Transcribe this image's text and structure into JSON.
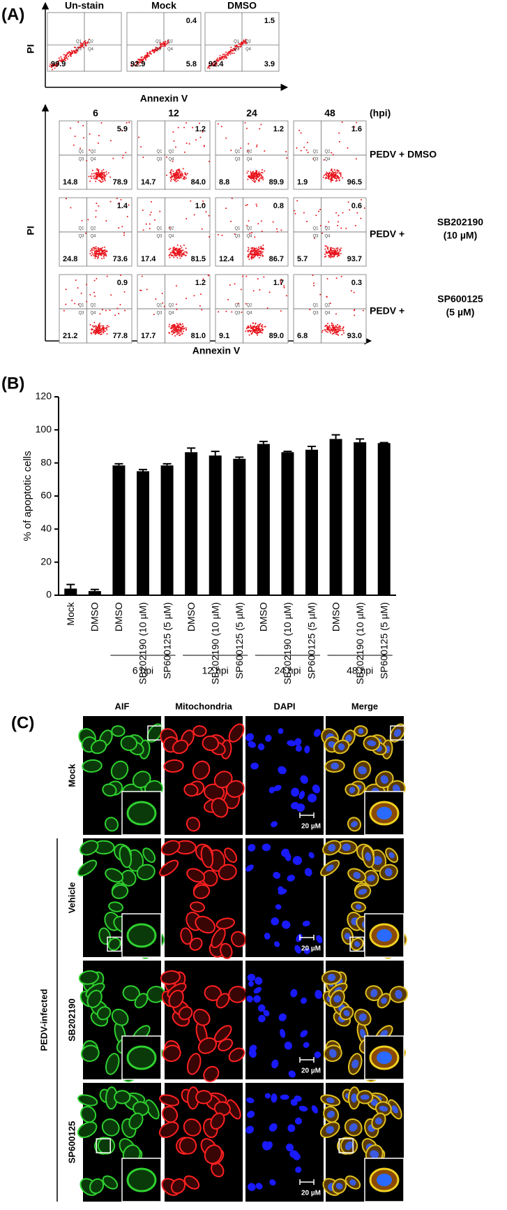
{
  "panel_a": {
    "label": "(A)",
    "y_label": "PI",
    "x_label": "Annexin V",
    "quadrant_labels": [
      "Q1",
      "Q2",
      "Q3",
      "Q4"
    ],
    "controls": [
      {
        "title": "Un-stain",
        "q3": "99.9"
      },
      {
        "title": "Mock",
        "q2": "0.4",
        "q3": "92.9",
        "q4": "5.8"
      },
      {
        "title": "DMSO",
        "q2": "1.5",
        "q3": "92.4",
        "q4": "3.9"
      }
    ],
    "time_unit": "(hpi)",
    "timepoints": [
      "6",
      "12",
      "24",
      "48"
    ],
    "treatments": [
      {
        "name": "PEDV + DMSO"
      },
      {
        "name": "PEDV +",
        "agent": "SB202190",
        "dose": "(10 µM)"
      },
      {
        "name": "PEDV +",
        "agent": "SP600125",
        "dose": "(5 µM)"
      }
    ],
    "cells": [
      [
        {
          "q2": "5.9",
          "q3": "14.8",
          "q4": "78.9"
        },
        {
          "q2": "1.2",
          "q3": "14.7",
          "q4": "84.0"
        },
        {
          "q2": "1.2",
          "q3": "8.8",
          "q4": "89.9"
        },
        {
          "q2": "1.6",
          "q3": "1.9",
          "q4": "96.5"
        }
      ],
      [
        {
          "q2": "1.4",
          "q3": "24.8",
          "q4": "73.6"
        },
        {
          "q2": "1.0",
          "q3": "17.4",
          "q4": "81.5"
        },
        {
          "q2": "0.8",
          "q3": "12.4",
          "q4": "86.7"
        },
        {
          "q2": "0.6",
          "q3": "5.7",
          "q4": "93.7"
        }
      ],
      [
        {
          "q2": "0.9",
          "q3": "21.2",
          "q4": "77.8"
        },
        {
          "q2": "1.2",
          "q3": "17.7",
          "q4": "81.0"
        },
        {
          "q2": "1.7",
          "q3": "9.1",
          "q4": "89.0"
        },
        {
          "q2": "0.3",
          "q3": "6.8",
          "q4": "93.0"
        }
      ]
    ]
  },
  "panel_b_label": "(B)",
  "chart_data": {
    "type": "bar",
    "y_label": "% of apoptotic cells",
    "categories": [
      "Mock",
      "DMSO",
      "DMSO",
      "SB202190 (10 µM)",
      "SP600125 (5 µM)",
      "DMSO",
      "SB202190 (10 µM)",
      "SP600125 (5 µM)",
      "DMSO",
      "SB202190 (10 µM)",
      "SP600125 (5 µM)",
      "DMSO",
      "SB202190 (10 µM)",
      "SP600125 (5 µM)"
    ],
    "values": [
      4,
      2.5,
      78.5,
      75,
      78.5,
      86.5,
      84.5,
      82.5,
      91.5,
      86.5,
      88,
      94.5,
      92.5,
      92
    ],
    "errors": [
      2.5,
      1,
      1,
      1,
      1,
      2.5,
      2.5,
      1,
      1.5,
      0.5,
      2,
      2.5,
      2,
      0.3
    ],
    "color": "#000000",
    "groups": [
      "6 hpi",
      "12 hpi",
      "24 hpi",
      "48 hpi"
    ],
    "ylim": [
      0,
      120
    ],
    "yticks": [
      0,
      20,
      40,
      60,
      80,
      100,
      120
    ]
  },
  "panel_c": {
    "label": "(C)",
    "columns": [
      "AIF",
      "Mitochondria",
      "DAPI",
      "Merge"
    ],
    "rows": [
      "Mock",
      "Vehicle",
      "SB202190",
      "SP600125"
    ],
    "group_label": "PEDV-infected",
    "scale_bar": "20 µM"
  }
}
